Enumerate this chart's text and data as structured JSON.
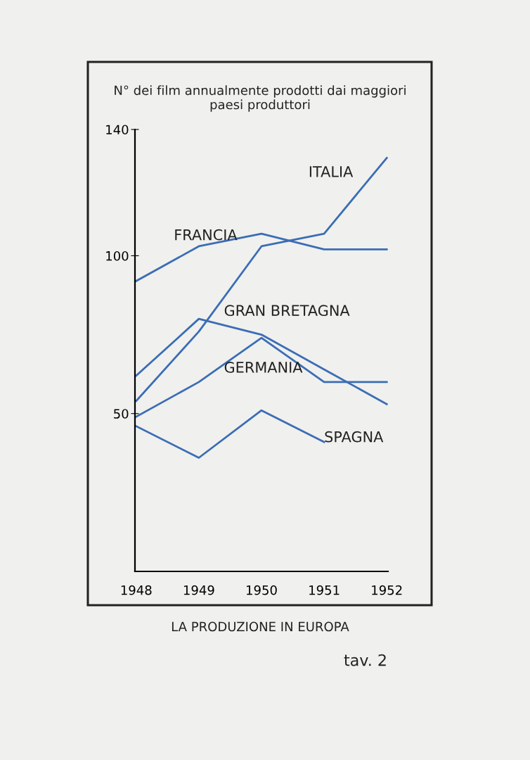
{
  "chart_data": {
    "type": "line",
    "title": "N° dei film annualmente prodotti dai maggiori\npaesi produttori",
    "categories": [
      "1948",
      "1949",
      "1950",
      "1951",
      "1952"
    ],
    "series": [
      {
        "name": "ITALIA",
        "color": "#3b6db5",
        "values": [
          54,
          76,
          103,
          107,
          131
        ]
      },
      {
        "name": "FRANCIA",
        "color": "#3b6db5",
        "values": [
          92,
          103,
          107,
          102,
          102
        ]
      },
      {
        "name": "GRAN BRETAGNA",
        "color": "#3b6db5",
        "values": [
          62,
          80,
          75,
          64,
          53
        ]
      },
      {
        "name": "GERMANIA",
        "color": "#3b6db5",
        "values": [
          49,
          60,
          74,
          60,
          60
        ]
      },
      {
        "name": "SPAGNA",
        "color": "#3b6db5",
        "values": [
          46,
          36,
          51,
          41,
          null
        ]
      }
    ],
    "ylim": [
      0,
      140
    ],
    "yticks": [
      50,
      100,
      140
    ],
    "grid": false,
    "legend": false,
    "marker": "none",
    "line_style": "solid",
    "annotations": [
      "LA PRODUZIONE IN EUROPA",
      "tav. 2"
    ]
  }
}
